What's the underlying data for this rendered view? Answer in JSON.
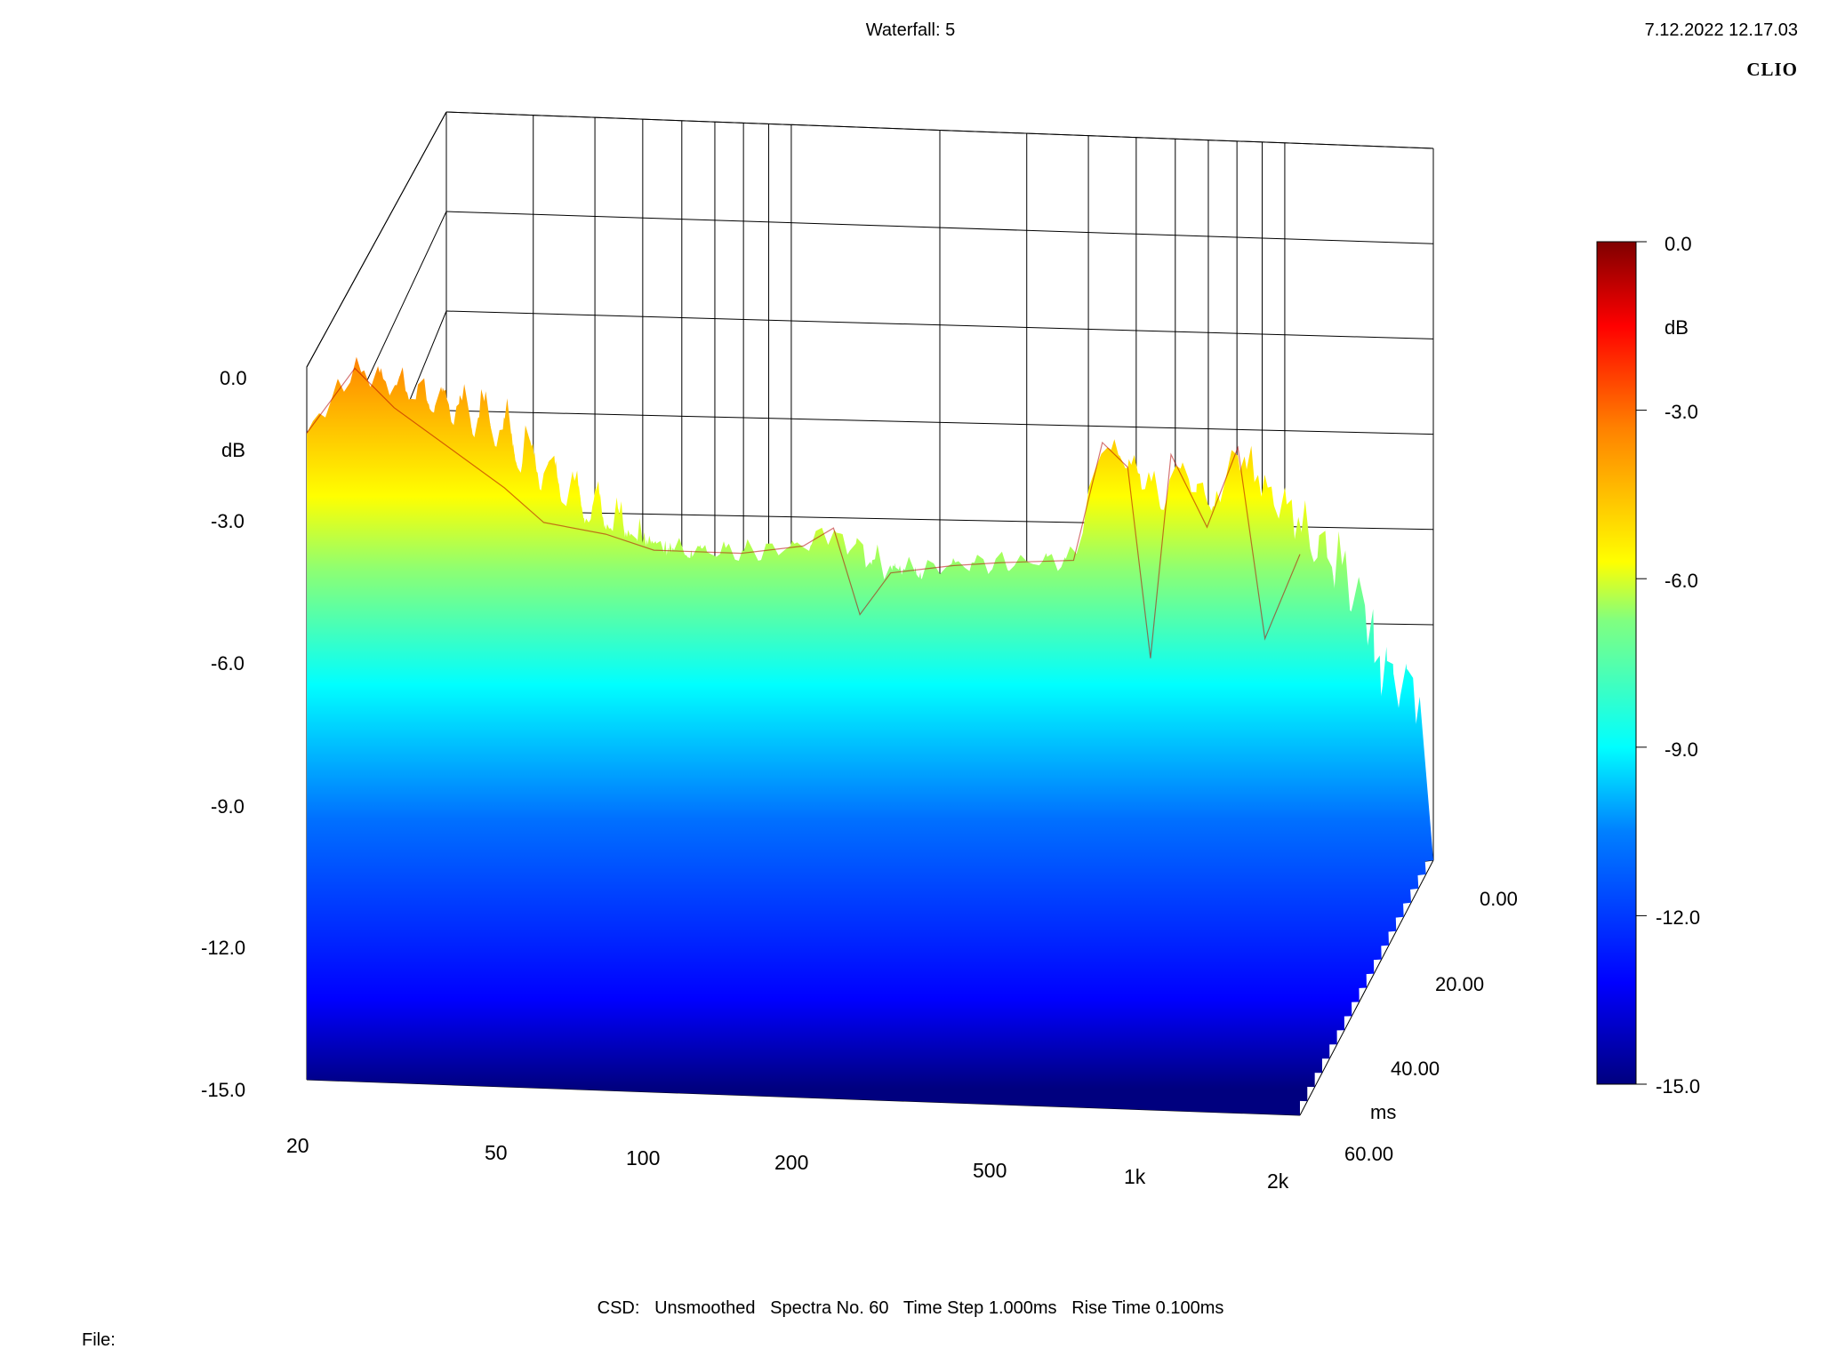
{
  "header": {
    "title": "Waterfall: 5",
    "date": "7.12.2022 12.17.03",
    "brand": "CLIO"
  },
  "footer": {
    "info": "CSD:   Unsmoothed   Spectra No. 60   Time Step 1.000ms   Rise Time 0.100ms",
    "file_label": "File:"
  },
  "chart_data": {
    "type": "waterfall",
    "title": "Waterfall: 5",
    "x_axis": {
      "scale": "log",
      "range": [
        20,
        2000
      ],
      "ticks": [
        "20",
        "50",
        "100",
        "200",
        "500",
        "1k",
        "2k"
      ]
    },
    "y_axis": {
      "label": "dB",
      "range": [
        -15,
        0
      ],
      "ticks": [
        "0.0",
        "-3.0",
        "-6.0",
        "-9.0",
        "-12.0",
        "-15.0"
      ]
    },
    "z_axis": {
      "label": "ms",
      "range": [
        0,
        60
      ],
      "ticks": [
        "0.00",
        "20.00",
        "40.00",
        "60.00"
      ]
    },
    "colorbar": {
      "label": "dB",
      "range": [
        -15,
        0
      ],
      "ticks": [
        "0.0",
        "-3.0",
        "-6.0",
        "-9.0",
        "-12.0",
        "-15.0"
      ],
      "colors": [
        "#00007f",
        "#0000ff",
        "#0080ff",
        "#00ffff",
        "#80ff80",
        "#ffff00",
        "#ff8000",
        "#ff0000",
        "#7f0000"
      ]
    },
    "spectra_count": 60,
    "time_step_ms": 1.0,
    "rise_time_ms": 0.1,
    "front_spectrum": [
      {
        "f": 20,
        "db": -1.4
      },
      {
        "f": 25,
        "db": 0.0
      },
      {
        "f": 30,
        "db": -0.8
      },
      {
        "f": 40,
        "db": -1.7
      },
      {
        "f": 50,
        "db": -2.4
      },
      {
        "f": 60,
        "db": -3.1
      },
      {
        "f": 80,
        "db": -3.3
      },
      {
        "f": 100,
        "db": -3.6
      },
      {
        "f": 150,
        "db": -3.6
      },
      {
        "f": 200,
        "db": -3.4
      },
      {
        "f": 230,
        "db": -3.0
      },
      {
        "f": 260,
        "db": -4.8
      },
      {
        "f": 300,
        "db": -3.9
      },
      {
        "f": 400,
        "db": -3.7
      },
      {
        "f": 500,
        "db": -3.6
      },
      {
        "f": 700,
        "db": -3.5
      },
      {
        "f": 800,
        "db": -1.0
      },
      {
        "f": 900,
        "db": -1.5
      },
      {
        "f": 1000,
        "db": -5.5
      },
      {
        "f": 1100,
        "db": -1.2
      },
      {
        "f": 1300,
        "db": -2.7
      },
      {
        "f": 1500,
        "db": -1.0
      },
      {
        "f": 1700,
        "db": -5.0
      },
      {
        "f": 2000,
        "db": -3.2
      }
    ]
  }
}
